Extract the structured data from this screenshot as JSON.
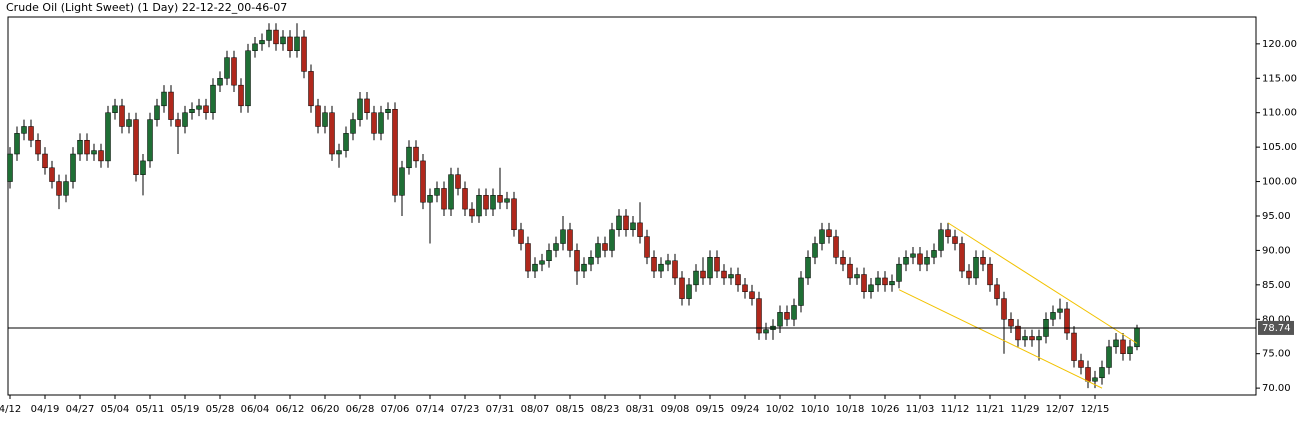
{
  "chart_data": {
    "type": "candlestick",
    "title": "Crude Oil (Light Sweet) (1 Day) 22-12-22_00-46-07",
    "up_color": "#1f6f35",
    "down_color": "#b0281c",
    "wick_color": "#000000",
    "categories": [
      "4/12",
      null,
      null,
      null,
      null,
      "04/19",
      null,
      null,
      null,
      null,
      "04/27",
      null,
      null,
      null,
      null,
      "05/04",
      null,
      null,
      null,
      null,
      "05/11",
      null,
      null,
      null,
      null,
      "05/19",
      null,
      null,
      null,
      null,
      "05/28",
      null,
      null,
      null,
      null,
      "06/04",
      null,
      null,
      null,
      null,
      "06/12",
      null,
      null,
      null,
      null,
      "06/20",
      null,
      null,
      null,
      null,
      "06/28",
      null,
      null,
      null,
      null,
      "07/06",
      null,
      null,
      null,
      null,
      "07/14",
      null,
      null,
      null,
      null,
      "07/23",
      null,
      null,
      null,
      null,
      "07/31",
      null,
      null,
      null,
      null,
      "08/07",
      null,
      null,
      null,
      null,
      "08/15",
      null,
      null,
      null,
      null,
      "08/23",
      null,
      null,
      null,
      null,
      "08/31",
      null,
      null,
      null,
      null,
      "09/08",
      null,
      null,
      null,
      null,
      "09/15",
      null,
      null,
      null,
      null,
      "09/24",
      null,
      null,
      null,
      null,
      "10/02",
      null,
      null,
      null,
      null,
      "10/10",
      null,
      null,
      null,
      null,
      "10/18",
      null,
      null,
      null,
      null,
      "10/26",
      null,
      null,
      null,
      null,
      "11/03",
      null,
      null,
      null,
      null,
      "11/12",
      null,
      null,
      null,
      null,
      "11/21",
      null,
      null,
      null,
      null,
      "11/29",
      null,
      null,
      null,
      null,
      "12/07",
      null,
      null,
      null,
      null,
      "12/15",
      null,
      null,
      null,
      null,
      null,
      null
    ],
    "open": [
      100,
      104,
      107,
      108,
      106,
      104,
      102,
      100,
      98,
      100,
      104,
      106,
      104,
      104.5,
      103,
      110,
      111,
      108,
      109,
      101,
      103,
      109,
      111,
      113,
      109,
      108,
      110,
      110.5,
      111,
      110,
      114,
      115,
      118,
      114,
      111,
      119,
      120,
      120.5,
      122,
      120,
      121,
      119,
      121,
      116,
      111,
      108,
      110,
      104,
      104.5,
      107,
      109,
      112,
      110,
      107,
      110,
      110.5,
      98,
      102,
      105,
      103,
      97,
      98,
      99,
      96,
      101,
      99,
      96,
      95,
      98,
      96,
      98,
      97,
      97.5,
      93,
      91,
      87,
      88,
      88.5,
      90,
      91,
      93,
      90,
      87,
      88,
      89,
      91,
      90,
      93,
      95,
      93,
      94,
      92,
      89,
      87,
      88,
      88.5,
      86,
      83,
      85,
      87,
      86,
      89,
      87,
      86,
      86.5,
      85,
      84,
      83,
      78,
      78.5,
      79,
      81,
      80,
      82,
      86,
      89,
      91,
      93,
      92,
      89,
      88,
      86,
      86.5,
      84,
      85,
      86,
      85,
      85.5,
      88,
      89,
      89.5,
      88,
      89,
      90,
      93,
      92,
      91,
      87,
      86,
      89,
      88,
      85,
      83,
      80,
      79,
      77,
      77.5,
      77,
      77.5,
      80,
      81,
      81.5,
      78,
      74,
      73,
      71,
      71.5,
      73,
      76,
      77,
      75,
      76
    ],
    "high": [
      105,
      108,
      109,
      109,
      107,
      105,
      103,
      101,
      101,
      105,
      107,
      107,
      105.5,
      105.5,
      111,
      112,
      112,
      110,
      110,
      104,
      110,
      112,
      114,
      114,
      110,
      111,
      111.5,
      112,
      112,
      115,
      116,
      119,
      119,
      115,
      120,
      121,
      121.5,
      123,
      123,
      122,
      122,
      123,
      122,
      117,
      112,
      111,
      111,
      105.5,
      108,
      110,
      113,
      113,
      111,
      111,
      111.5,
      111.5,
      103,
      106,
      106,
      104,
      99,
      100,
      100,
      102,
      102,
      100,
      97,
      99,
      99,
      99,
      102,
      98.5,
      98.5,
      94,
      92,
      89,
      89.5,
      91,
      92,
      95,
      94,
      91,
      89,
      90,
      92,
      92,
      94,
      96,
      96,
      95,
      97,
      93,
      90,
      89,
      89.5,
      89.5,
      87,
      86,
      88,
      89,
      90,
      90,
      88,
      87.5,
      87.5,
      86,
      85,
      84,
      79.5,
      80,
      82,
      82,
      83,
      87,
      90,
      92,
      94,
      94,
      93,
      90,
      89,
      87.5,
      87.5,
      86,
      87,
      87,
      86.5,
      89,
      90,
      90.5,
      90.5,
      90,
      91,
      94,
      94,
      93,
      92,
      88,
      90,
      90,
      89,
      86,
      84,
      81,
      80,
      78.5,
      78.5,
      78.5,
      81,
      82,
      83,
      82.5,
      79,
      75,
      74,
      72.5,
      74,
      77,
      78,
      78,
      77,
      79.2
    ],
    "low": [
      99,
      103,
      106,
      105,
      103,
      101,
      99,
      96,
      97,
      99,
      103,
      103,
      103,
      102,
      102,
      109,
      107,
      107,
      100,
      98,
      102,
      108,
      110,
      108,
      104,
      107,
      109,
      109.5,
      109,
      109,
      113,
      114,
      113,
      110,
      110,
      118,
      119,
      119.5,
      119,
      119,
      118,
      118,
      115,
      110,
      107,
      107,
      103,
      102,
      103.5,
      106,
      108,
      109,
      106,
      106,
      109,
      97,
      95,
      101,
      102,
      96,
      91,
      97,
      95,
      95,
      98,
      95,
      94,
      94,
      95,
      95,
      96,
      96,
      92,
      90,
      86,
      86,
      87,
      87.5,
      89,
      90,
      89,
      85,
      86,
      87,
      88,
      89,
      89,
      92,
      92,
      92,
      91,
      88,
      86,
      86,
      87,
      85,
      82,
      82,
      84,
      85,
      85,
      86,
      85,
      85,
      84,
      83,
      82,
      77,
      77,
      77,
      78,
      79,
      79,
      81,
      85,
      88,
      90,
      91,
      88,
      87,
      85,
      85,
      83,
      83,
      84,
      84,
      84,
      84.5,
      87,
      88,
      87,
      87,
      88,
      89,
      91,
      90,
      86,
      85,
      85,
      87,
      84,
      82,
      75,
      78,
      76,
      76,
      76,
      74,
      76.5,
      79,
      80,
      77,
      73,
      72,
      70,
      70,
      70.5,
      72,
      75,
      74,
      74,
      75.5
    ],
    "close": [
      104,
      107,
      108,
      106,
      104,
      102,
      100,
      98,
      100,
      104,
      106,
      104,
      104.5,
      103,
      110,
      111,
      108,
      109,
      101,
      103,
      109,
      111,
      113,
      109,
      108,
      110,
      110.5,
      111,
      110,
      114,
      115,
      118,
      114,
      111,
      119,
      120,
      120.5,
      122,
      120,
      121,
      119,
      121,
      116,
      111,
      108,
      110,
      104,
      104.5,
      107,
      109,
      112,
      110,
      107,
      110,
      110.5,
      98,
      102,
      105,
      103,
      97,
      98,
      99,
      96,
      101,
      99,
      96,
      95,
      98,
      96,
      98,
      97,
      97.5,
      93,
      91,
      87,
      88,
      88.5,
      90,
      91,
      93,
      90,
      87,
      88,
      89,
      91,
      90,
      93,
      95,
      93,
      94,
      92,
      89,
      87,
      88,
      88.5,
      86,
      83,
      85,
      87,
      86,
      89,
      87,
      86,
      86.5,
      85,
      84,
      83,
      78,
      78.5,
      79,
      81,
      80,
      82,
      86,
      89,
      91,
      93,
      92,
      89,
      88,
      86,
      86.5,
      84,
      85,
      86,
      85,
      85.5,
      88,
      89,
      89.5,
      88,
      89,
      90,
      93,
      92,
      91,
      87,
      86,
      89,
      88,
      85,
      83,
      80,
      79,
      77,
      77.5,
      77,
      77.5,
      80,
      81,
      81.5,
      78,
      74,
      73,
      71,
      71.5,
      73,
      76,
      77,
      75,
      76,
      78.74
    ],
    "ylim": [
      69,
      123.9
    ],
    "yticks": [
      {
        "value": 70,
        "label": "70.00"
      },
      {
        "value": 75,
        "label": "75.00"
      },
      {
        "value": 80,
        "label": "80.00"
      },
      {
        "value": 85,
        "label": "85.00"
      },
      {
        "value": 90,
        "label": "90.00"
      },
      {
        "value": 95,
        "label": "95.00"
      },
      {
        "value": 100,
        "label": "100.00"
      },
      {
        "value": 105,
        "label": "105.00"
      },
      {
        "value": 110,
        "label": "110.00"
      },
      {
        "value": 115,
        "label": "115.00"
      },
      {
        "value": 120,
        "label": "120.00"
      }
    ],
    "last_price": 78.74,
    "trendline_color": "#f2c200",
    "trendlines": [
      {
        "x": [
          134,
          161
        ],
        "y": [
          94,
          76.5
        ]
      },
      {
        "x": [
          127,
          156
        ],
        "y": [
          84.3,
          70
        ]
      }
    ]
  }
}
